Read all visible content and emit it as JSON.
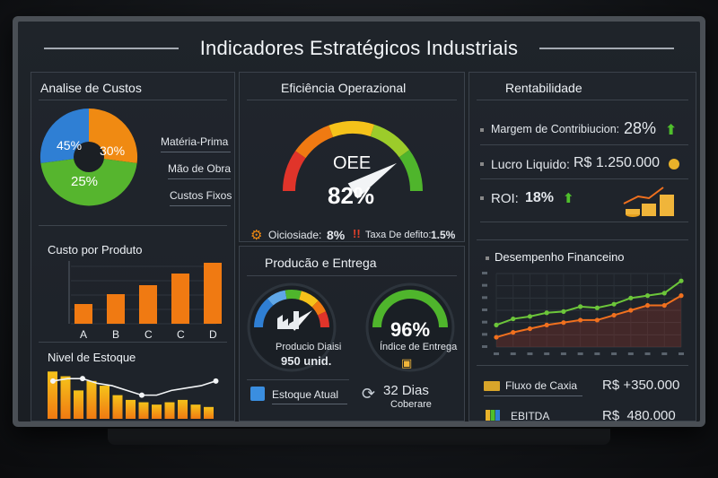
{
  "header": {
    "title": "Indicadores Estratégicos Industriais"
  },
  "custos": {
    "title": "Analise de Custos",
    "pie": [
      {
        "label": "Matéria-Prima",
        "value": 30,
        "color": "#f08a12"
      },
      {
        "label": "Mão de Obra",
        "value": 45,
        "color": "#2f7fd4"
      },
      {
        "label": "Custos Fixos",
        "value": 25,
        "color": "#56b52e"
      }
    ],
    "pct_a": "45%",
    "pct_b": "30%",
    "pct_c": "25%",
    "leg1": "Matéria-Prima",
    "leg2": "Mão de Obra",
    "leg3": "Custos Fixos"
  },
  "produto": {
    "title": "Custo por Produto",
    "chart_data": {
      "type": "bar",
      "categories": [
        "A",
        "B",
        "C",
        "C",
        "D"
      ],
      "values": [
        22,
        33,
        43,
        56,
        68
      ],
      "ylim": [
        0,
        70
      ],
      "title": "Custo por Produto"
    }
  },
  "estoque": {
    "title": "Nivel de Estoque",
    "chart_data": {
      "type": "bar",
      "values": [
        10,
        9,
        6,
        8,
        7,
        5,
        4,
        3.5,
        3,
        3.5,
        4,
        3,
        2.5
      ],
      "line": [
        8,
        8.5,
        8.5,
        7.5,
        7,
        6,
        5,
        5,
        6,
        6.5,
        7,
        8
      ],
      "ylim": [
        0,
        11
      ]
    }
  },
  "eficiencia": {
    "title": "Eficiência Operazional",
    "oee_label": "OEE",
    "oee_value": "82%",
    "gauge": {
      "value": 82,
      "max": 100
    },
    "ociosidade_label": "Oiciosiade:",
    "ociosidade_value": "8%",
    "defeito_label": "Taxa De defito:",
    "defeito_value": "1.5%"
  },
  "producao": {
    "title": "Producão e Entrega",
    "left_label": "Producio Diaisi",
    "left_value": "950 unid.",
    "left_gauge": 78,
    "right_value": "96%",
    "right_label": "Índice de Entrega",
    "right_gauge": 96,
    "estoque_label": "Estoque Atual",
    "dias_value": "32 Dias",
    "dias_label": "Coberare"
  },
  "rentabilidade": {
    "title": "Rentabilidade",
    "margem_label": "Margem de Contribiucion:",
    "margem_value": "28%",
    "lucro_label": "Lucro Liquido:",
    "lucro_value": "R$ 1.250.000",
    "roi_label": "ROI:",
    "roi_value": "18%"
  },
  "financeiro": {
    "title": "Desempenho Financeino",
    "chart_data": {
      "type": "line",
      "x": [
        1,
        2,
        3,
        4,
        5,
        6,
        7,
        8,
        9,
        10,
        11,
        12
      ],
      "series": [
        {
          "name": "green",
          "color": "#6cc63a",
          "values": [
            28,
            33,
            35,
            38,
            39,
            43,
            42,
            45,
            50,
            52,
            54,
            64
          ]
        },
        {
          "name": "orange",
          "color": "#f0701e",
          "values": [
            18,
            22,
            25,
            28,
            30,
            32,
            32,
            36,
            40,
            44,
            44,
            52
          ]
        }
      ],
      "ylim": [
        10,
        70
      ],
      "ytick_labels": [
        "",
        "",
        "",
        "",
        "",
        "",
        ""
      ],
      "xtick_labels": [
        "",
        "",
        "",
        "",
        "",
        "",
        "",
        "",
        "",
        "",
        "",
        ""
      ]
    },
    "fluxo_label": "Fluxo de Caxia",
    "fluxo_value": "R$ +350.000",
    "ebitda_label": "EBITDA",
    "ebitda_value": "R$  480.000"
  }
}
